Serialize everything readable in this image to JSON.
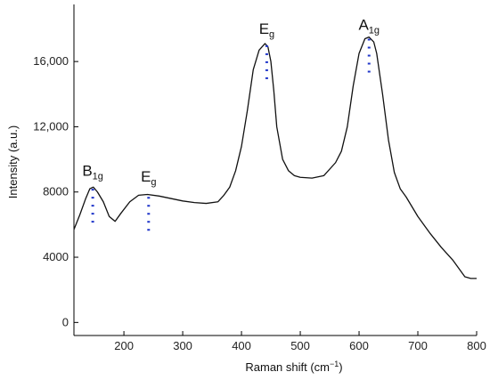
{
  "chart_data": {
    "type": "line",
    "xlabel": "Raman shift (cm",
    "xlabel_sup": "−1",
    "xlabel_tail": ")",
    "ylabel": "Intensity (a.u.)",
    "xlim": [
      115,
      800
    ],
    "ylim": [
      -800,
      19500
    ],
    "x_ticks": [
      {
        "value": 200,
        "label": "200"
      },
      {
        "value": 300,
        "label": "300"
      },
      {
        "value": 400,
        "label": "400"
      },
      {
        "value": 500,
        "label": "500"
      },
      {
        "value": 600,
        "label": "600"
      },
      {
        "value": 700,
        "label": "700"
      },
      {
        "value": 800,
        "label": "800"
      }
    ],
    "y_ticks": [
      {
        "value": 0,
        "label": "0"
      },
      {
        "value": 4000,
        "label": "4000"
      },
      {
        "value": 8000,
        "label": "8000"
      },
      {
        "value": 12000,
        "label": "12,000"
      },
      {
        "value": 16000,
        "label": "16,000"
      }
    ],
    "grid": false,
    "legend": false,
    "line_color": "#111111",
    "marker_color": "#1f35c9",
    "series": [
      {
        "x": [
          115,
          125,
          135,
          142,
          148,
          155,
          165,
          175,
          185,
          195,
          210,
          225,
          240,
          260,
          280,
          300,
          320,
          340,
          360,
          370,
          380,
          390,
          400,
          410,
          420,
          430,
          440,
          445,
          450,
          455,
          460,
          470,
          480,
          490,
          500,
          520,
          540,
          560,
          570,
          580,
          590,
          600,
          610,
          617,
          625,
          630,
          640,
          650,
          660,
          670,
          680,
          690,
          700,
          720,
          740,
          760,
          770,
          780,
          790,
          800
        ],
        "y": [
          5700,
          6600,
          7600,
          8200,
          8300,
          8000,
          7400,
          6500,
          6200,
          6700,
          7400,
          7800,
          7850,
          7750,
          7600,
          7450,
          7350,
          7300,
          7400,
          7800,
          8300,
          9300,
          10800,
          13000,
          15500,
          16700,
          17100,
          16900,
          16000,
          14200,
          12000,
          10000,
          9300,
          9000,
          8900,
          8850,
          9000,
          9800,
          10500,
          12000,
          14500,
          16500,
          17400,
          17500,
          17200,
          16500,
          14000,
          11200,
          9200,
          8200,
          7700,
          7100,
          6500,
          5500,
          4600,
          3800,
          3300,
          2800,
          2700,
          2700
        ]
      }
    ],
    "annotations": [
      {
        "base": "B",
        "sub": "1g",
        "x": 147,
        "y_top": 8200,
        "y_bottom": 5900,
        "label_y": 9000
      },
      {
        "base": "E",
        "sub": "g",
        "x": 242,
        "y_top": 7700,
        "y_bottom": 5300,
        "label_y": 8650
      },
      {
        "base": "E",
        "sub": "g",
        "x": 443,
        "y_top": 17000,
        "y_bottom": 14600,
        "label_y": 17700
      },
      {
        "base": "A",
        "sub": "1g",
        "x": 617,
        "y_top": 17400,
        "y_bottom": 15000,
        "label_y": 17950
      }
    ]
  }
}
